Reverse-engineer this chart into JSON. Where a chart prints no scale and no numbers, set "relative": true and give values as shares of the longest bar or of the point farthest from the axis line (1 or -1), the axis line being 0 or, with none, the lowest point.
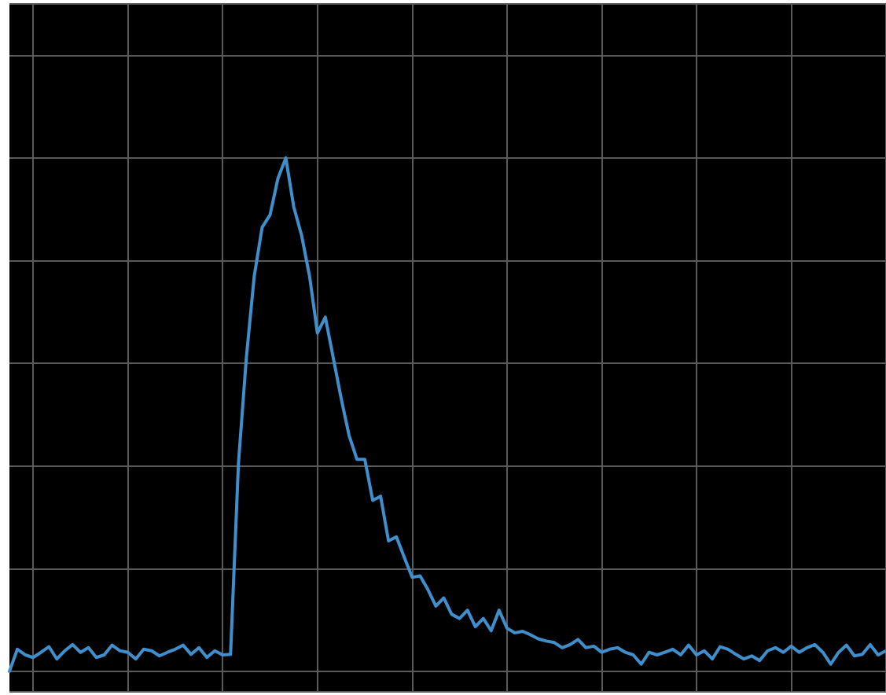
{
  "chart_data": {
    "type": "line",
    "relative": true,
    "grid": true,
    "marker": "none",
    "line_style": "solid",
    "categories": [
      null,
      null,
      null,
      null,
      null,
      null,
      null,
      null,
      null,
      null,
      null,
      null,
      null,
      null,
      null,
      null,
      null,
      null,
      null,
      null,
      null,
      null,
      null,
      null,
      null,
      null,
      null,
      null,
      null,
      null,
      null,
      null,
      null,
      null,
      null,
      null,
      null,
      null,
      null,
      null,
      null,
      null,
      null,
      null,
      null,
      null,
      null,
      null,
      null,
      null,
      null,
      null,
      null,
      null,
      null,
      null,
      null,
      null,
      null,
      null,
      null,
      null,
      null,
      null,
      null,
      null,
      null,
      null,
      null,
      null,
      null,
      null,
      null,
      null,
      null,
      null,
      null,
      null,
      null,
      null,
      null,
      null,
      null,
      null,
      null,
      null,
      null,
      null,
      null,
      null,
      null,
      null,
      null,
      null,
      null,
      null,
      null,
      null,
      null,
      null,
      null,
      null,
      null,
      null,
      null,
      null,
      null,
      null,
      null,
      null,
      null,
      null
    ],
    "series": [
      {
        "color": "#3f8fcc",
        "values": [
          0,
          0.043,
          0.032,
          0.027,
          0.037,
          0.048,
          0.024,
          0.04,
          0.052,
          0.037,
          0.046,
          0.027,
          0.032,
          0.051,
          0.04,
          0.037,
          0.024,
          0.043,
          0.04,
          0.03,
          0.037,
          0.043,
          0.051,
          0.033,
          0.046,
          0.027,
          0.04,
          0.032,
          0.033,
          0.405,
          0.611,
          0.77,
          0.865,
          0.889,
          0.96,
          1,
          0.905,
          0.849,
          0.77,
          0.659,
          0.69,
          0.611,
          0.532,
          0.46,
          0.413,
          0.413,
          0.333,
          0.341,
          0.254,
          0.262,
          0.222,
          0.183,
          0.186,
          0.159,
          0.127,
          0.143,
          0.111,
          0.103,
          0.119,
          0.087,
          0.103,
          0.079,
          0.119,
          0.084,
          0.075,
          0.078,
          0.071,
          0.063,
          0.059,
          0.056,
          0.046,
          0.052,
          0.062,
          0.046,
          0.049,
          0.037,
          0.043,
          0.046,
          0.037,
          0.032,
          0.014,
          0.037,
          0.032,
          0.037,
          0.043,
          0.032,
          0.051,
          0.032,
          0.04,
          0.024,
          0.048,
          0.043,
          0.033,
          0.024,
          0.03,
          0.021,
          0.04,
          0.046,
          0.037,
          0.049,
          0.037,
          0.046,
          0.052,
          0.037,
          0.014,
          0.037,
          0.051,
          0.03,
          0.033,
          0.052,
          0.032,
          0.04
        ]
      }
    ]
  }
}
